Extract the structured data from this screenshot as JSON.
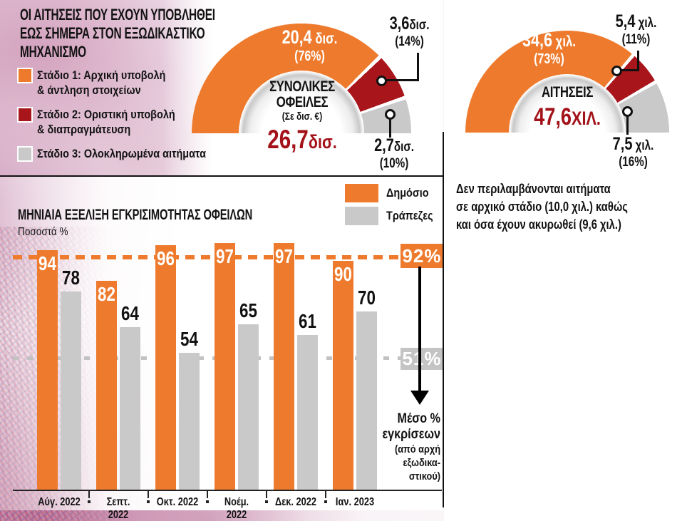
{
  "colors": {
    "orange": "#ee7b2d",
    "dark_red": "#a8161c",
    "light_gray": "#c9c9c9",
    "box_gray": "#c4c4c4",
    "value_red": "#a31219",
    "ink": "#121212"
  },
  "header": {
    "title_line1": "ΟΙ ΑΙΤΗΣΕΙΣ ΠΟΥ ΕΧΟΥΝ ΥΠΟΒΛΗΘΕΙ",
    "title_line2": "ΕΩΣ ΣΗΜΕΡΑ ΣΤΟΝ ΕΞΩΔΙΚΑΣΤΙΚΟ",
    "title_line3": "ΜΗΧΑΝΙΣΜΟ"
  },
  "stage_legend": {
    "items": [
      {
        "line1": "Στάδιο 1: Αρχική υποβολή",
        "line2": "& άντληση στοιχείων",
        "color_key": "orange"
      },
      {
        "line1": "Στάδιο 2: Οριστική υποβολή",
        "line2": "& διαπραγμάτευση",
        "color_key": "dark_red"
      },
      {
        "line1": "Στάδιο 3: Ολοκληρωμένα αιτήματα",
        "line2": "",
        "color_key": "light_gray"
      }
    ]
  },
  "note": {
    "line1": "Δεν περιλαμβάνονται αιτήματα",
    "line2": "σε αρχικό στάδιο (10,0 χιλ.) καθώς",
    "line3": "και όσα έχουν ακυρωθεί (9,6 χιλ.)"
  },
  "bar_section": {
    "title": "ΜΗΝΙΑΙΑ ΕΞΕΛΙΞΗ ΕΓΚΡΙΣΙΜΟΤΗΤΑΣ ΟΦΕΙΛΩΝ",
    "subtitle": "Ποσοστά %",
    "legend_public": "Δημόσιο",
    "legend_banks": "Τράπεζες",
    "avg_public_label": "92%",
    "avg_banks_label": "51%",
    "annotation_line1": "Μέσο %",
    "annotation_line2": "εγκρίσεων",
    "annotation_line3": "(από αρχή",
    "annotation_line4": "εξωδικα-",
    "annotation_line5": "στικού)"
  },
  "chart_data": [
    {
      "type": "donut",
      "title": "ΣΥΝΟΛΙΚΕΣ ΟΦΕΙΛΕΣ",
      "center_title_line1": "ΣΥΝΟΛΙΚΕΣ",
      "center_title_line2": "ΟΦΕΙΛΕΣ",
      "center_subtitle": "(Σε δισ. €)",
      "total_value": "26,7",
      "total_unit": "δισ.",
      "segments": [
        {
          "label": "Στάδιο 1: Αρχική υποβολή & άντληση στοιχείων",
          "value": "20,4",
          "unit": " δισ.",
          "pct": 76,
          "pct_label": "(76%)",
          "color_key": "orange"
        },
        {
          "label": "Στάδιο 2: Οριστική υποβολή & διαπραγμάτευση",
          "value": "3,6",
          "unit": "δισ.",
          "pct": 14,
          "pct_label": "(14%)",
          "color_key": "dark_red"
        },
        {
          "label": "Στάδιο 3: Ολοκληρωμένα αιτήματα",
          "value": "2,7",
          "unit": "δισ.",
          "pct": 10,
          "pct_label": "(10%)",
          "color_key": "light_gray"
        }
      ]
    },
    {
      "type": "donut",
      "title": "ΑΙΤΗΣΕΙΣ",
      "center_title_line1": "ΑΙΤΗΣΕΙΣ",
      "total_value": "47,6",
      "total_unit": "ΧΙΛ.",
      "segments": [
        {
          "label": "Στάδιο 1: Αρχική υποβολή & άντληση στοιχείων",
          "value": "34,6",
          "unit": " χιλ.",
          "pct": 73,
          "pct_label": "(73%)",
          "color_key": "orange"
        },
        {
          "label": "Στάδιο 2: Οριστική υποβολή & διαπραγμάτευση",
          "value": "5,4",
          "unit": " χιλ.",
          "pct": 11,
          "pct_label": "(11%)",
          "color_key": "dark_red"
        },
        {
          "label": "Στάδιο 3: Ολοκληρωμένα αιτήματα",
          "value": "7,5",
          "unit": " χιλ.",
          "pct": 16,
          "pct_label": "(16%)",
          "color_key": "light_gray"
        }
      ]
    },
    {
      "type": "bar",
      "title": "ΜΗΝΙΑΙΑ ΕΞΕΛΙΞΗ ΕΓΚΡΙΣΙΜΟΤΗΤΑΣ ΟΦΕΙΛΩΝ",
      "ylabel": "Ποσοστά %",
      "ylim": [
        0,
        100
      ],
      "categories": [
        "Αύγ. 2022",
        "Σεπτ. 2022",
        "Οκτ. 2022",
        "Νοέμ. 2022",
        "Δεκ. 2022",
        "Ιαν. 2023"
      ],
      "series": [
        {
          "name": "Δημόσιο",
          "color_key": "orange",
          "values": [
            94,
            82,
            96,
            97,
            97,
            90
          ]
        },
        {
          "name": "Τράπεζες",
          "color_key": "light_gray",
          "values": [
            78,
            64,
            54,
            65,
            61,
            70
          ]
        }
      ],
      "average_lines": [
        {
          "series": "Δημόσιο",
          "label": "92%",
          "value": 92
        },
        {
          "series": "Τράπεζες",
          "label": "51%",
          "value": 51
        }
      ],
      "annotation": "Μέσο % εγκρίσεων (από αρχή εξωδικαστικού)"
    }
  ]
}
